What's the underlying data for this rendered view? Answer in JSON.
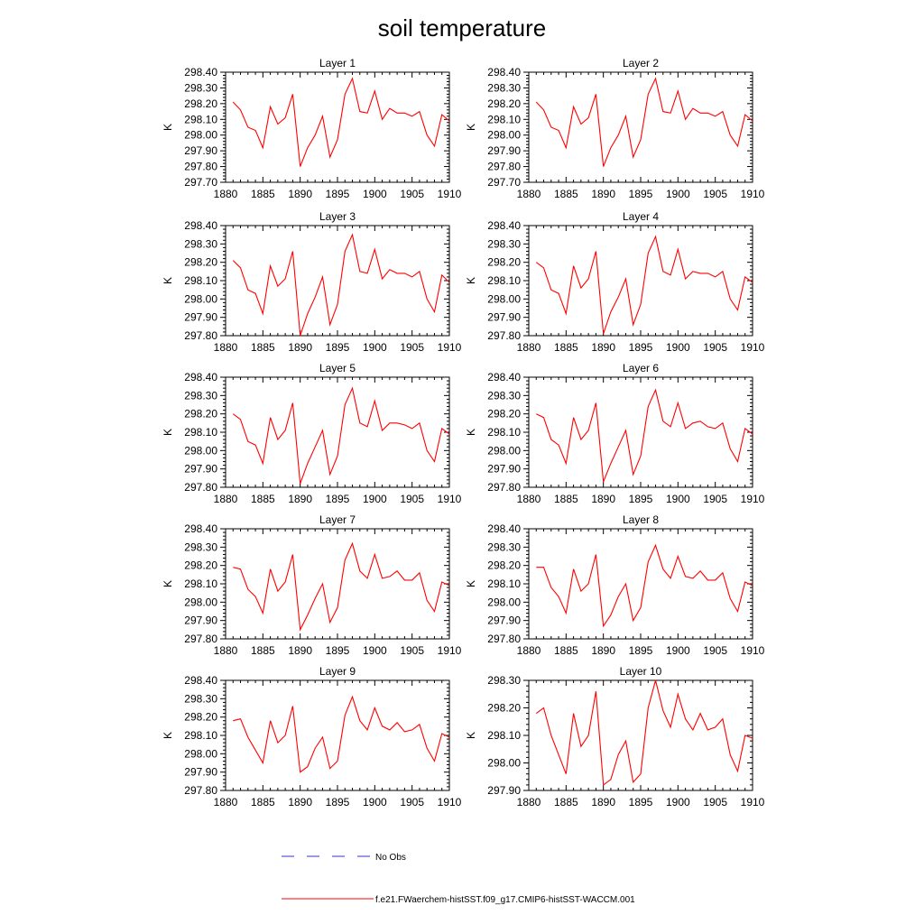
{
  "figure_title": "soil temperature",
  "legend": {
    "entries": [
      {
        "label": "No Obs",
        "color": "#3333cc",
        "dash": "dashed"
      },
      {
        "label": "f.e21.FWaerchem-histSST.f09_g17.CMIP6-histSST-WACCM.001",
        "color": "#ff0000",
        "dash": "solid"
      }
    ]
  },
  "chart_data": [
    {
      "type": "line",
      "title": "Layer 1",
      "ylabel": "K",
      "xlim": [
        1880,
        1910
      ],
      "ylim": [
        297.7,
        298.4
      ],
      "xticks": [
        "1880",
        "1885",
        "1890",
        "1895",
        "1900",
        "1905",
        "1910"
      ],
      "yticks": [
        "297.70",
        "297.80",
        "297.90",
        "298.00",
        "298.10",
        "298.20",
        "298.30",
        "298.40"
      ],
      "x": [
        1881,
        1882,
        1883,
        1884,
        1885,
        1886,
        1887,
        1888,
        1889,
        1890,
        1891,
        1892,
        1893,
        1894,
        1895,
        1896,
        1897,
        1898,
        1899,
        1900,
        1901,
        1902,
        1903,
        1904,
        1905,
        1906,
        1907,
        1908,
        1909,
        1910
      ],
      "series": [
        {
          "color": "#ff0000",
          "values": [
            298.21,
            298.16,
            298.05,
            298.03,
            297.92,
            298.18,
            298.07,
            298.11,
            298.26,
            297.8,
            297.92,
            298.0,
            298.12,
            297.86,
            297.97,
            298.26,
            298.36,
            298.15,
            298.14,
            298.28,
            298.1,
            298.17,
            298.14,
            298.14,
            298.12,
            298.15,
            298.0,
            297.93,
            298.13,
            298.09
          ]
        }
      ]
    },
    {
      "type": "line",
      "title": "Layer 2",
      "ylabel": "K",
      "xlim": [
        1880,
        1910
      ],
      "ylim": [
        297.7,
        298.4
      ],
      "xticks": [
        "1880",
        "1885",
        "1890",
        "1895",
        "1900",
        "1905",
        "1910"
      ],
      "yticks": [
        "297.70",
        "297.80",
        "297.90",
        "298.00",
        "298.10",
        "298.20",
        "298.30",
        "298.40"
      ],
      "x": [
        1881,
        1882,
        1883,
        1884,
        1885,
        1886,
        1887,
        1888,
        1889,
        1890,
        1891,
        1892,
        1893,
        1894,
        1895,
        1896,
        1897,
        1898,
        1899,
        1900,
        1901,
        1902,
        1903,
        1904,
        1905,
        1906,
        1907,
        1908,
        1909,
        1910
      ],
      "series": [
        {
          "color": "#ff0000",
          "values": [
            298.21,
            298.16,
            298.05,
            298.03,
            297.92,
            298.18,
            298.07,
            298.11,
            298.26,
            297.8,
            297.92,
            298.0,
            298.12,
            297.86,
            297.97,
            298.26,
            298.36,
            298.15,
            298.14,
            298.28,
            298.1,
            298.17,
            298.14,
            298.14,
            298.12,
            298.15,
            298.0,
            297.93,
            298.13,
            298.09
          ]
        }
      ]
    },
    {
      "type": "line",
      "title": "Layer 3",
      "ylabel": "K",
      "xlim": [
        1880,
        1910
      ],
      "ylim": [
        297.8,
        298.4
      ],
      "xticks": [
        "1880",
        "1885",
        "1890",
        "1895",
        "1900",
        "1905",
        "1910"
      ],
      "yticks": [
        "297.80",
        "297.90",
        "298.00",
        "298.10",
        "298.20",
        "298.30",
        "298.40"
      ],
      "x": [
        1881,
        1882,
        1883,
        1884,
        1885,
        1886,
        1887,
        1888,
        1889,
        1890,
        1891,
        1892,
        1893,
        1894,
        1895,
        1896,
        1897,
        1898,
        1899,
        1900,
        1901,
        1902,
        1903,
        1904,
        1905,
        1906,
        1907,
        1908,
        1909,
        1910
      ],
      "series": [
        {
          "color": "#ff0000",
          "values": [
            298.21,
            298.17,
            298.05,
            298.03,
            297.92,
            298.18,
            298.07,
            298.11,
            298.26,
            297.8,
            297.92,
            298.01,
            298.12,
            297.86,
            297.97,
            298.26,
            298.35,
            298.15,
            298.14,
            298.27,
            298.11,
            298.16,
            298.14,
            298.14,
            298.12,
            298.15,
            298.0,
            297.93,
            298.13,
            298.09
          ]
        }
      ]
    },
    {
      "type": "line",
      "title": "Layer 4",
      "ylabel": "K",
      "xlim": [
        1880,
        1910
      ],
      "ylim": [
        297.8,
        298.4
      ],
      "xticks": [
        "1880",
        "1885",
        "1890",
        "1895",
        "1900",
        "1905",
        "1910"
      ],
      "yticks": [
        "297.80",
        "297.90",
        "298.00",
        "298.10",
        "298.20",
        "298.30",
        "298.40"
      ],
      "x": [
        1881,
        1882,
        1883,
        1884,
        1885,
        1886,
        1887,
        1888,
        1889,
        1890,
        1891,
        1892,
        1893,
        1894,
        1895,
        1896,
        1897,
        1898,
        1899,
        1900,
        1901,
        1902,
        1903,
        1904,
        1905,
        1906,
        1907,
        1908,
        1909,
        1910
      ],
      "series": [
        {
          "color": "#ff0000",
          "values": [
            298.2,
            298.17,
            298.05,
            298.03,
            297.92,
            298.18,
            298.06,
            298.11,
            298.26,
            297.81,
            297.93,
            298.01,
            298.11,
            297.86,
            297.97,
            298.25,
            298.34,
            298.15,
            298.13,
            298.27,
            298.11,
            298.15,
            298.14,
            298.14,
            298.12,
            298.15,
            298.0,
            297.94,
            298.12,
            298.09
          ]
        }
      ]
    },
    {
      "type": "line",
      "title": "Layer 5",
      "ylabel": "K",
      "xlim": [
        1880,
        1910
      ],
      "ylim": [
        297.8,
        298.4
      ],
      "xticks": [
        "1880",
        "1885",
        "1890",
        "1895",
        "1900",
        "1905",
        "1910"
      ],
      "yticks": [
        "297.80",
        "297.90",
        "298.00",
        "298.10",
        "298.20",
        "298.30",
        "298.40"
      ],
      "x": [
        1881,
        1882,
        1883,
        1884,
        1885,
        1886,
        1887,
        1888,
        1889,
        1890,
        1891,
        1892,
        1893,
        1894,
        1895,
        1896,
        1897,
        1898,
        1899,
        1900,
        1901,
        1902,
        1903,
        1904,
        1905,
        1906,
        1907,
        1908,
        1909,
        1910
      ],
      "series": [
        {
          "color": "#ff0000",
          "values": [
            298.2,
            298.17,
            298.05,
            298.03,
            297.93,
            298.18,
            298.06,
            298.11,
            298.26,
            297.82,
            297.93,
            298.02,
            298.11,
            297.87,
            297.97,
            298.25,
            298.34,
            298.15,
            298.13,
            298.27,
            298.11,
            298.15,
            298.15,
            298.14,
            298.12,
            298.15,
            298.0,
            297.94,
            298.12,
            298.09
          ]
        }
      ]
    },
    {
      "type": "line",
      "title": "Layer 6",
      "ylabel": "K",
      "xlim": [
        1880,
        1910
      ],
      "ylim": [
        297.8,
        298.4
      ],
      "xticks": [
        "1880",
        "1885",
        "1890",
        "1895",
        "1900",
        "1905",
        "1910"
      ],
      "yticks": [
        "297.80",
        "297.90",
        "298.00",
        "298.10",
        "298.20",
        "298.30",
        "298.40"
      ],
      "x": [
        1881,
        1882,
        1883,
        1884,
        1885,
        1886,
        1887,
        1888,
        1889,
        1890,
        1891,
        1892,
        1893,
        1894,
        1895,
        1896,
        1897,
        1898,
        1899,
        1900,
        1901,
        1902,
        1903,
        1904,
        1905,
        1906,
        1907,
        1908,
        1909,
        1910
      ],
      "series": [
        {
          "color": "#ff0000",
          "values": [
            298.2,
            298.18,
            298.06,
            298.03,
            297.93,
            298.18,
            298.06,
            298.11,
            298.26,
            297.83,
            297.93,
            298.02,
            298.11,
            297.87,
            297.97,
            298.24,
            298.33,
            298.16,
            298.13,
            298.26,
            298.12,
            298.15,
            298.16,
            298.13,
            298.12,
            298.15,
            298.01,
            297.94,
            298.12,
            298.09
          ]
        }
      ]
    },
    {
      "type": "line",
      "title": "Layer 7",
      "ylabel": "K",
      "xlim": [
        1880,
        1910
      ],
      "ylim": [
        297.8,
        298.4
      ],
      "xticks": [
        "1880",
        "1885",
        "1890",
        "1895",
        "1900",
        "1905",
        "1910"
      ],
      "yticks": [
        "297.80",
        "297.90",
        "298.00",
        "298.10",
        "298.20",
        "298.30",
        "298.40"
      ],
      "x": [
        1881,
        1882,
        1883,
        1884,
        1885,
        1886,
        1887,
        1888,
        1889,
        1890,
        1891,
        1892,
        1893,
        1894,
        1895,
        1896,
        1897,
        1898,
        1899,
        1900,
        1901,
        1902,
        1903,
        1904,
        1905,
        1906,
        1907,
        1908,
        1909,
        1910
      ],
      "series": [
        {
          "color": "#ff0000",
          "values": [
            298.19,
            298.18,
            298.07,
            298.03,
            297.94,
            298.18,
            298.06,
            298.11,
            298.26,
            297.85,
            297.93,
            298.02,
            298.1,
            297.89,
            297.97,
            298.23,
            298.32,
            298.17,
            298.13,
            298.26,
            298.13,
            298.14,
            298.17,
            298.12,
            298.12,
            298.16,
            298.01,
            297.95,
            298.11,
            298.09
          ]
        }
      ]
    },
    {
      "type": "line",
      "title": "Layer 8",
      "ylabel": "K",
      "xlim": [
        1880,
        1910
      ],
      "ylim": [
        297.8,
        298.4
      ],
      "xticks": [
        "1880",
        "1885",
        "1890",
        "1895",
        "1900",
        "1905",
        "1910"
      ],
      "yticks": [
        "297.80",
        "297.90",
        "298.00",
        "298.10",
        "298.20",
        "298.30",
        "298.40"
      ],
      "x": [
        1881,
        1882,
        1883,
        1884,
        1885,
        1886,
        1887,
        1888,
        1889,
        1890,
        1891,
        1892,
        1893,
        1894,
        1895,
        1896,
        1897,
        1898,
        1899,
        1900,
        1901,
        1902,
        1903,
        1904,
        1905,
        1906,
        1907,
        1908,
        1909,
        1910
      ],
      "series": [
        {
          "color": "#ff0000",
          "values": [
            298.19,
            298.19,
            298.08,
            298.03,
            297.94,
            298.18,
            298.06,
            298.1,
            298.26,
            297.87,
            297.93,
            298.03,
            298.1,
            297.9,
            297.97,
            298.22,
            298.31,
            298.18,
            298.13,
            298.25,
            298.14,
            298.13,
            298.17,
            298.12,
            298.12,
            298.16,
            298.02,
            297.95,
            298.11,
            298.09
          ]
        }
      ]
    },
    {
      "type": "line",
      "title": "Layer 9",
      "ylabel": "K",
      "xlim": [
        1880,
        1910
      ],
      "ylim": [
        297.8,
        298.4
      ],
      "xticks": [
        "1880",
        "1885",
        "1890",
        "1895",
        "1900",
        "1905",
        "1910"
      ],
      "yticks": [
        "297.80",
        "297.90",
        "298.00",
        "298.10",
        "298.20",
        "298.30",
        "298.40"
      ],
      "x": [
        1881,
        1882,
        1883,
        1884,
        1885,
        1886,
        1887,
        1888,
        1889,
        1890,
        1891,
        1892,
        1893,
        1894,
        1895,
        1896,
        1897,
        1898,
        1899,
        1900,
        1901,
        1902,
        1903,
        1904,
        1905,
        1906,
        1907,
        1908,
        1909,
        1910
      ],
      "series": [
        {
          "color": "#ff0000",
          "values": [
            298.18,
            298.19,
            298.09,
            298.02,
            297.95,
            298.18,
            298.06,
            298.1,
            298.26,
            297.9,
            297.93,
            298.03,
            298.09,
            297.92,
            297.96,
            298.21,
            298.31,
            298.18,
            298.13,
            298.25,
            298.15,
            298.13,
            298.17,
            298.12,
            298.13,
            298.16,
            298.03,
            297.96,
            298.11,
            298.09
          ]
        }
      ]
    },
    {
      "type": "line",
      "title": "Layer 10",
      "ylabel": "K",
      "xlim": [
        1880,
        1910
      ],
      "ylim": [
        297.9,
        298.3
      ],
      "xticks": [
        "1880",
        "1885",
        "1890",
        "1895",
        "1900",
        "1905",
        "1910"
      ],
      "yticks": [
        "297.90",
        "298.00",
        "298.10",
        "298.20",
        "298.30"
      ],
      "x": [
        1881,
        1882,
        1883,
        1884,
        1885,
        1886,
        1887,
        1888,
        1889,
        1890,
        1891,
        1892,
        1893,
        1894,
        1895,
        1896,
        1897,
        1898,
        1899,
        1900,
        1901,
        1902,
        1903,
        1904,
        1905,
        1906,
        1907,
        1908,
        1909,
        1910
      ],
      "series": [
        {
          "color": "#ff0000",
          "values": [
            298.18,
            298.2,
            298.1,
            298.03,
            297.96,
            298.18,
            298.06,
            298.1,
            298.26,
            297.92,
            297.94,
            298.03,
            298.08,
            297.93,
            297.96,
            298.2,
            298.3,
            298.19,
            298.13,
            298.25,
            298.16,
            298.12,
            298.18,
            298.12,
            298.13,
            298.16,
            298.03,
            297.97,
            298.1,
            298.09
          ]
        }
      ]
    }
  ]
}
